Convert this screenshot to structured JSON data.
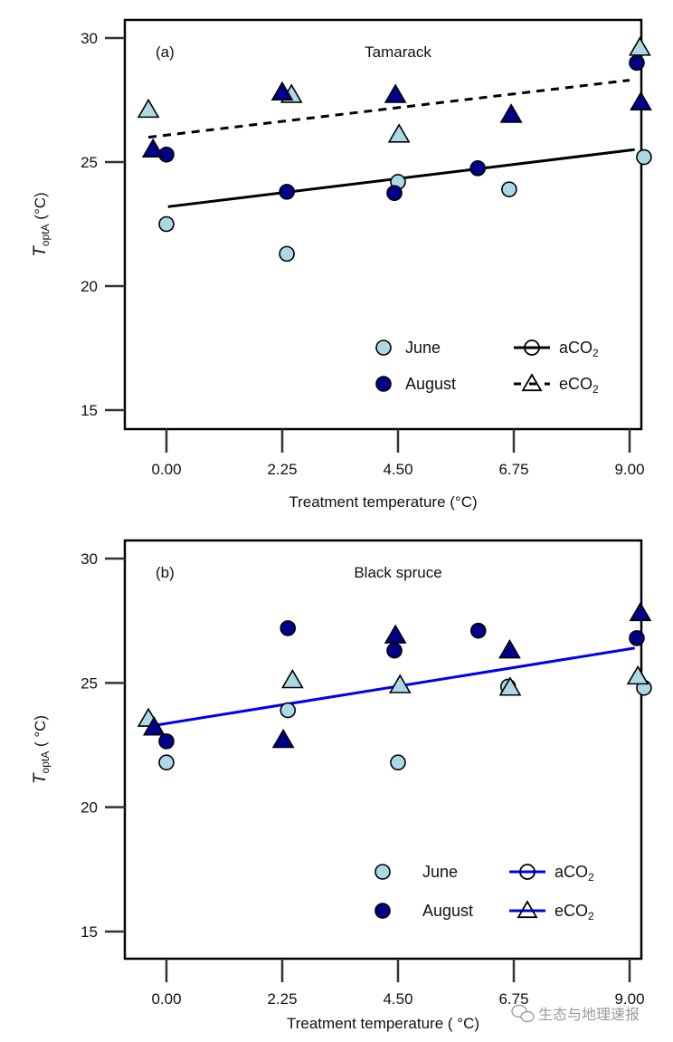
{
  "chart_data": [
    {
      "type": "scatter",
      "panel_tag": "(a)",
      "title": "Tamarack",
      "xlabel": "Treatment temperature (°C)",
      "ylabel_main": "T",
      "ylabel_sub": "optA",
      "ylabel_unit": " (°C)",
      "xlim": [
        -0.5,
        9.45
      ],
      "ylim": [
        14.2,
        30.7
      ],
      "xticks": [
        0,
        2.25,
        4.5,
        6.75,
        9
      ],
      "xtick_labels": [
        "0.00",
        "2.25",
        "4.50",
        "6.75",
        "9.00"
      ],
      "yticks": [
        15,
        20,
        25,
        30
      ],
      "ytick_labels": [
        "15",
        "20",
        "25",
        "30"
      ],
      "grid": false,
      "series": [
        {
          "name": "June aCO2",
          "month": "June",
          "co2": "aCO2",
          "marker": "circle",
          "x": [
            0.0,
            2.34,
            4.5,
            6.66,
            9.28
          ],
          "y": [
            22.5,
            21.3,
            24.2,
            23.9,
            25.2
          ]
        },
        {
          "name": "August aCO2",
          "month": "August",
          "co2": "aCO2",
          "marker": "circle",
          "x": [
            0.0,
            2.34,
            4.43,
            6.05,
            9.14
          ],
          "y": [
            25.3,
            23.8,
            23.75,
            24.75,
            29.0
          ]
        },
        {
          "name": "June eCO2",
          "month": "June",
          "co2": "eCO2",
          "marker": "triangle",
          "x": [
            -0.35,
            2.43,
            4.52,
            6.7,
            9.2
          ],
          "y": [
            27.1,
            27.7,
            26.1,
            26.9,
            29.6
          ]
        },
        {
          "name": "August eCO2",
          "month": "August",
          "co2": "eCO2",
          "marker": "triangle",
          "x": [
            -0.26,
            2.25,
            4.45,
            6.7,
            9.22
          ],
          "y": [
            25.5,
            27.8,
            27.7,
            26.9,
            27.4
          ]
        }
      ],
      "fit_lines": [
        {
          "name": "aCO2 fit",
          "style": "solid",
          "color": "#000000",
          "x": [
            0.03,
            9.1
          ],
          "y": [
            23.2,
            25.5
          ]
        },
        {
          "name": "eCO2 fit",
          "style": "dashed",
          "color": "#000000",
          "x": [
            -0.35,
            9.0
          ],
          "y": [
            26.0,
            28.3
          ]
        }
      ],
      "legend": {
        "position": "bottom-right",
        "months": [
          {
            "label": "June",
            "color_key": "June"
          },
          {
            "label": "August",
            "color_key": "August"
          }
        ],
        "co2": [
          {
            "label": "aCO",
            "sub": "2",
            "marker": "circle",
            "line": "solid",
            "line_color": "#000000"
          },
          {
            "label": "eCO",
            "sub": "2",
            "marker": "triangle",
            "line": "dashed",
            "line_color": "#000000"
          }
        ]
      }
    },
    {
      "type": "scatter",
      "panel_tag": "(b)",
      "title": "Black spruce",
      "xlabel": "Treatment temperature ( °C)",
      "ylabel_main": "T",
      "ylabel_sub": "optA",
      "ylabel_unit": " ( °C)",
      "xlim": [
        -0.5,
        9.45
      ],
      "ylim": [
        14.0,
        30.7
      ],
      "xticks": [
        0,
        2.25,
        4.5,
        6.75,
        9
      ],
      "xtick_labels": [
        "0.00",
        "2.25",
        "4.50",
        "6.75",
        "9.00"
      ],
      "yticks": [
        15,
        20,
        25,
        30
      ],
      "ytick_labels": [
        "15",
        "20",
        "25",
        "30"
      ],
      "grid": false,
      "series": [
        {
          "name": "June aCO2",
          "month": "June",
          "co2": "aCO2",
          "marker": "circle",
          "x": [
            0.0,
            2.36,
            4.5,
            6.64,
            9.28
          ],
          "y": [
            21.8,
            23.9,
            21.8,
            24.85,
            24.8
          ]
        },
        {
          "name": "August aCO2",
          "month": "August",
          "co2": "aCO2",
          "marker": "circle",
          "x": [
            0.0,
            2.36,
            4.43,
            6.06,
            9.14
          ],
          "y": [
            22.65,
            27.2,
            26.3,
            27.1,
            26.8
          ]
        },
        {
          "name": "June eCO2",
          "month": "June",
          "co2": "eCO2",
          "marker": "triangle",
          "x": [
            -0.35,
            2.45,
            4.54,
            6.68,
            9.16
          ],
          "y": [
            23.55,
            25.1,
            24.9,
            24.8,
            25.25
          ]
        },
        {
          "name": "August eCO2",
          "month": "August",
          "co2": "eCO2",
          "marker": "triangle",
          "x": [
            -0.24,
            2.27,
            4.45,
            6.67,
            9.21
          ],
          "y": [
            23.2,
            22.7,
            26.9,
            26.3,
            27.8
          ]
        }
      ],
      "fit_lines": [
        {
          "name": "pooled fit",
          "style": "solid",
          "color": "#0000ee",
          "x": [
            -0.2,
            9.1
          ],
          "y": [
            23.3,
            26.4
          ]
        }
      ],
      "legend": {
        "position": "bottom-right",
        "months": [
          {
            "label": "June",
            "color_key": "June"
          },
          {
            "label": "August",
            "color_key": "August"
          }
        ],
        "co2": [
          {
            "label": "aCO",
            "sub": "2",
            "marker": "circle",
            "line": "solid",
            "line_color": "#0000ee"
          },
          {
            "label": "eCO",
            "sub": "2",
            "marker": "triangle",
            "line": "solid",
            "line_color": "#0000ee"
          }
        ]
      }
    }
  ],
  "colors": {
    "June": "#add8e6",
    "August": "#00008b",
    "outline": "#000000"
  },
  "watermark": {
    "icon": "wechat-icon",
    "text": "生态与地理速报"
  }
}
